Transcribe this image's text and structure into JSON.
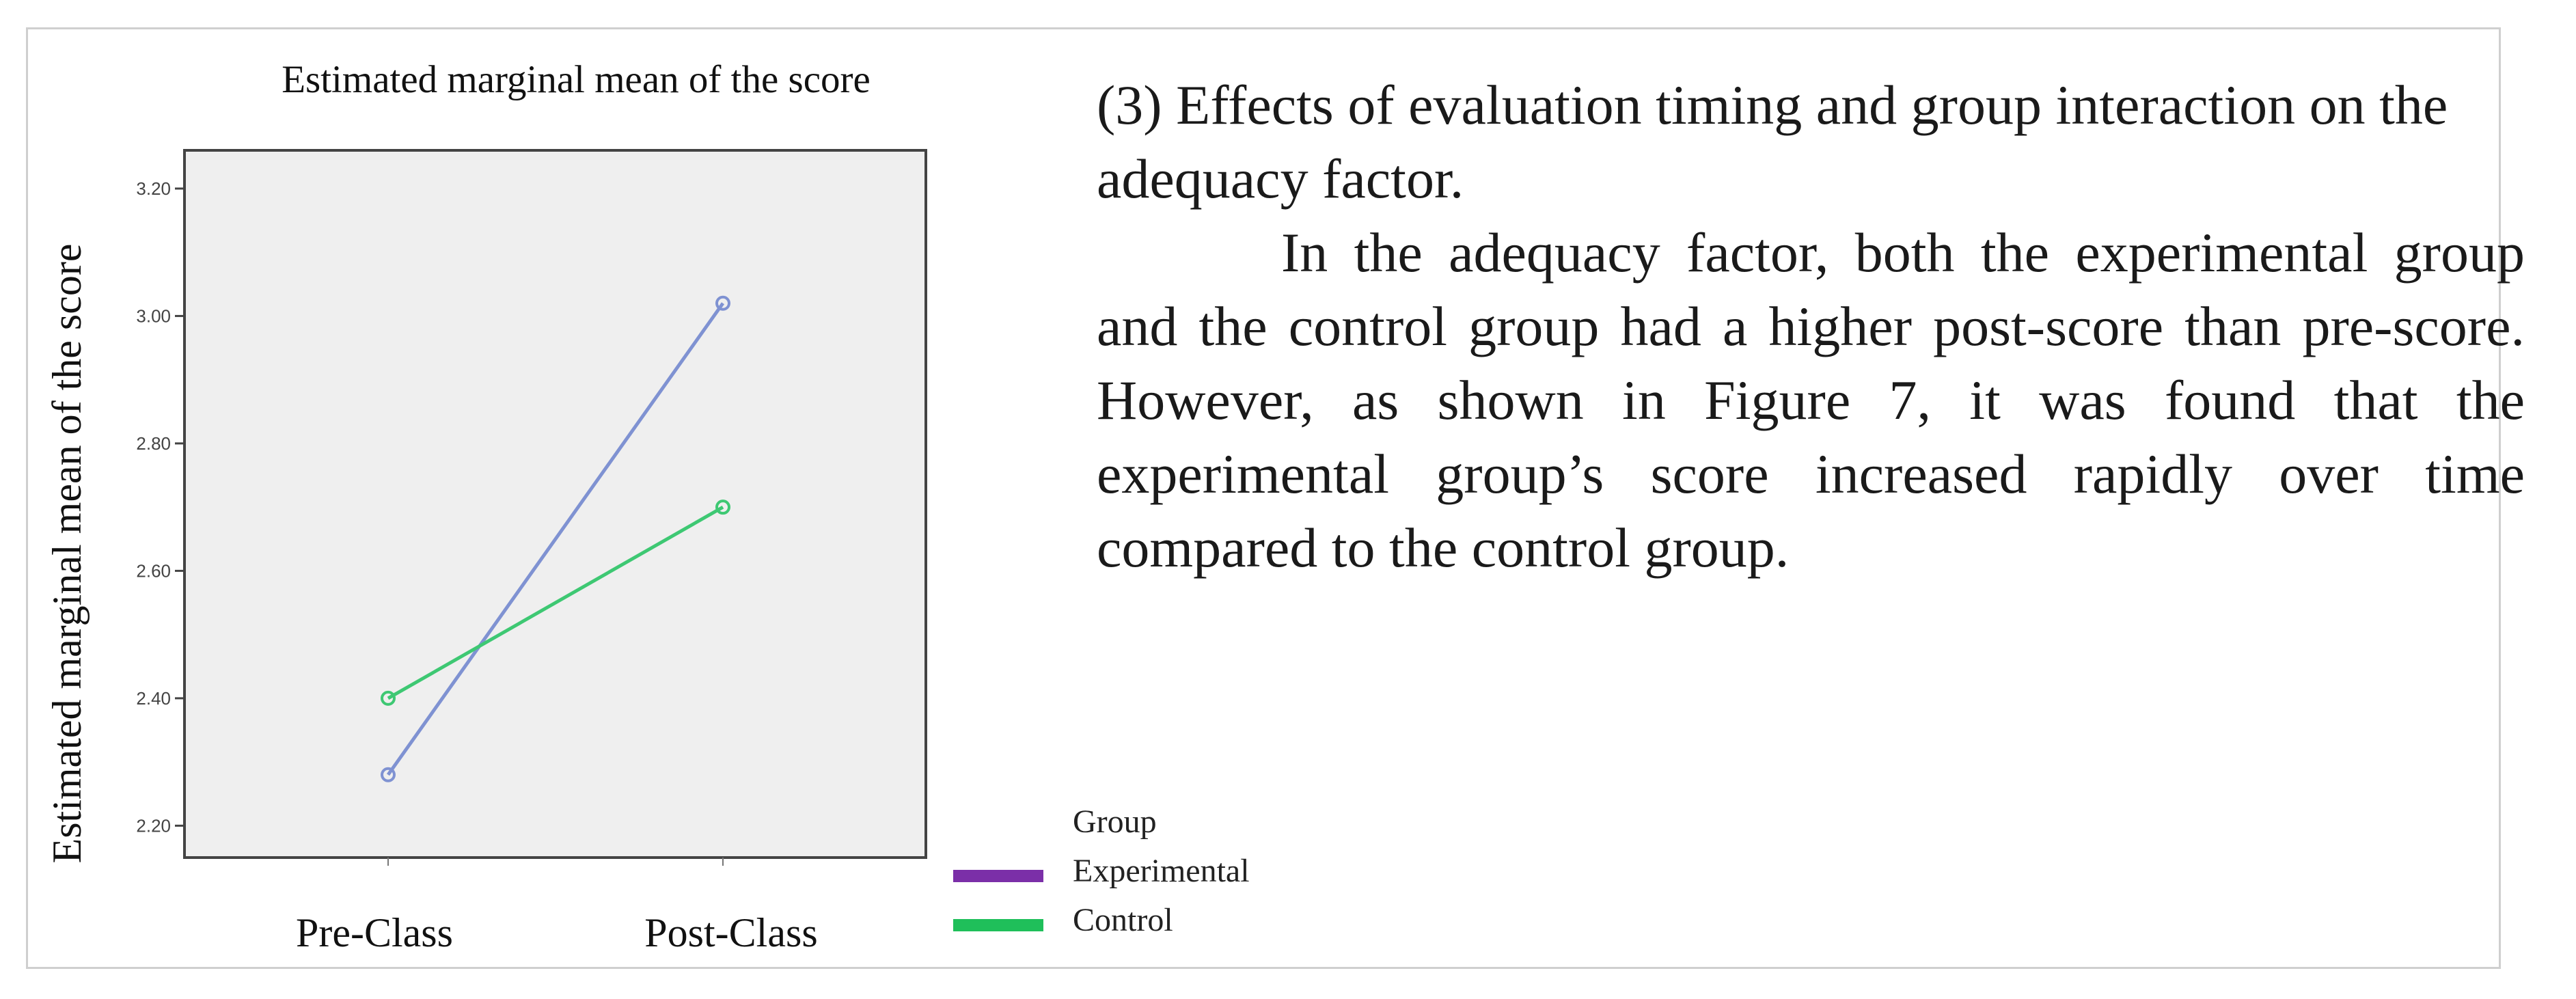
{
  "chart_data": {
    "type": "line",
    "title": "Estimated marginal mean of the score",
    "xlabel": "",
    "ylabel": "Estimated marginal mean of the score",
    "categories": [
      "Pre-Class",
      "Post-Class"
    ],
    "ylim": [
      2.15,
      3.26
    ],
    "yticks": [
      2.2,
      2.4,
      2.6,
      2.8,
      3.0,
      3.2
    ],
    "ytick_labels": [
      "2.20",
      "2.40",
      "2.60",
      "2.80",
      "3.00",
      "3.20"
    ],
    "grid": false,
    "legend_position": "bottom-right",
    "series": [
      {
        "name": "Experimental",
        "values": [
          2.28,
          3.02
        ],
        "color": "#7f92d2",
        "legend_color": "#7b2fa8"
      },
      {
        "name": "Control",
        "values": [
          2.4,
          2.7
        ],
        "color": "#3ec873",
        "legend_color": "#1fbf5a"
      }
    ]
  },
  "legend": {
    "title": "Group",
    "items": [
      "Experimental",
      "Control"
    ]
  },
  "text": {
    "heading": "(3) Effects of evaluation timing and group interaction on the adequacy factor.",
    "body": "In the adequacy factor, both the experimental group and the control group had a higher post-score than pre-score. However, as shown in Figure 7, it was found that the experimental group’s score increased rapidly over time compared to the control group."
  }
}
